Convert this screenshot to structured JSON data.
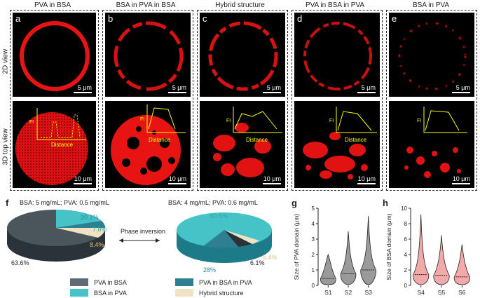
{
  "columns": [
    {
      "title": "PVA in BSA",
      "letter": "a"
    },
    {
      "title": "BSA in PVA in BSA",
      "letter": "b"
    },
    {
      "title": "Hybrid structure",
      "letter": "c"
    },
    {
      "title": "PVA in BSA in PVA",
      "letter": "d"
    },
    {
      "title": "BSA in PVA",
      "letter": "e"
    }
  ],
  "rows": {
    "top": "2D view",
    "bottom": "3D top view"
  },
  "scale_top": "5 μm",
  "scale_bottom": "10 μm",
  "inset": {
    "ylabel": "FI",
    "xlabel": "Distance"
  },
  "panel_f": {
    "label": "f",
    "left_title": "BSA: 5 mg/mL; PVA: 0.5 mg/mL",
    "right_title": "BSA: 4 mg/mL; PVA: 0.6 mg/mL",
    "arrow_label": "Phase inversion",
    "left_pct": [
      "63.6%",
      "20.1%",
      "7.8%",
      "8.4%"
    ],
    "right_pct": [
      "60.5%",
      "28%",
      "6.1%",
      "5.4%"
    ],
    "legend": [
      "PVA in BSA",
      "BSA in PVA",
      "PVA  in BSA in PVA",
      "Hybrid structure"
    ],
    "colors": {
      "pva_in_bsa": "#5f6b72",
      "bsa_in_pva": "#46c3c6",
      "pva_bsa_pva": "#2f7f92",
      "hybrid": "#efe3c4"
    }
  },
  "chart_data": [
    {
      "type": "violin",
      "label": "g",
      "ylabel": "Size of PVA domain (μm)",
      "categories": [
        "S1",
        "S2",
        "S3"
      ],
      "medians": [
        0.45,
        0.75,
        1.0
      ],
      "maxima": [
        2.0,
        3.5,
        4.5
      ],
      "ylim": [
        0,
        5
      ],
      "yticks": [
        0,
        1,
        2,
        3,
        4,
        5
      ],
      "color": "#9a9a9a"
    },
    {
      "type": "violin",
      "label": "h",
      "ylabel": "Size of BSA domain (μm)",
      "categories": [
        "S4",
        "S5",
        "S6"
      ],
      "medians": [
        1.4,
        1.3,
        1.1
      ],
      "maxima": [
        9.2,
        6.5,
        5.3
      ],
      "ylim": [
        0,
        10
      ],
      "yticks": [
        0,
        2,
        4,
        6,
        8,
        10
      ],
      "color": "#f2a9a9"
    }
  ]
}
